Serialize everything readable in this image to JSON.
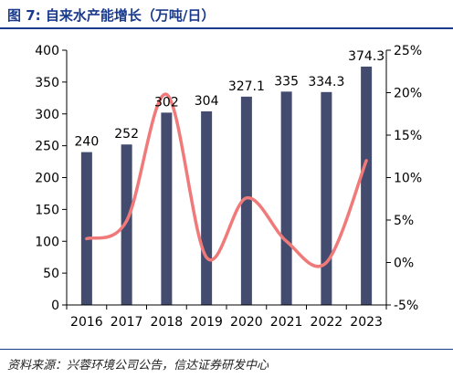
{
  "figure": {
    "title": "图 7:  自来水产能增长（万吨/日）",
    "source": "资料来源：兴蓉环境公司公告，信达证券研发中心"
  },
  "colors": {
    "title": "#1a3a8c",
    "bar": "#434b6e",
    "line": "#f07a7a",
    "axis": "#000000"
  },
  "chart_data": {
    "type": "bar",
    "categories": [
      "2016",
      "2017",
      "2018",
      "2019",
      "2020",
      "2021",
      "2022",
      "2023"
    ],
    "series": [
      {
        "type": "bar",
        "axis": "left",
        "values": [
          240,
          252,
          302,
          304,
          327.1,
          335,
          334.3,
          374.3
        ],
        "labels": [
          "240",
          "252",
          "302",
          "304",
          "327.1",
          "335",
          "334.3",
          "374.3"
        ]
      },
      {
        "type": "line",
        "axis": "right",
        "smooth": true,
        "values": [
          2.8,
          4.9,
          19.8,
          0.6,
          7.6,
          2.5,
          0.0,
          12.0
        ]
      }
    ],
    "y_left": {
      "min": 0,
      "max": 400,
      "ticks": [
        "0",
        "50",
        "100",
        "150",
        "200",
        "250",
        "300",
        "350",
        "400"
      ]
    },
    "y_right": {
      "min": -5,
      "max": 25,
      "ticks": [
        "-5%",
        "0%",
        "5%",
        "10%",
        "15%",
        "20%",
        "25%"
      ]
    },
    "grid": false,
    "legend": "none"
  }
}
